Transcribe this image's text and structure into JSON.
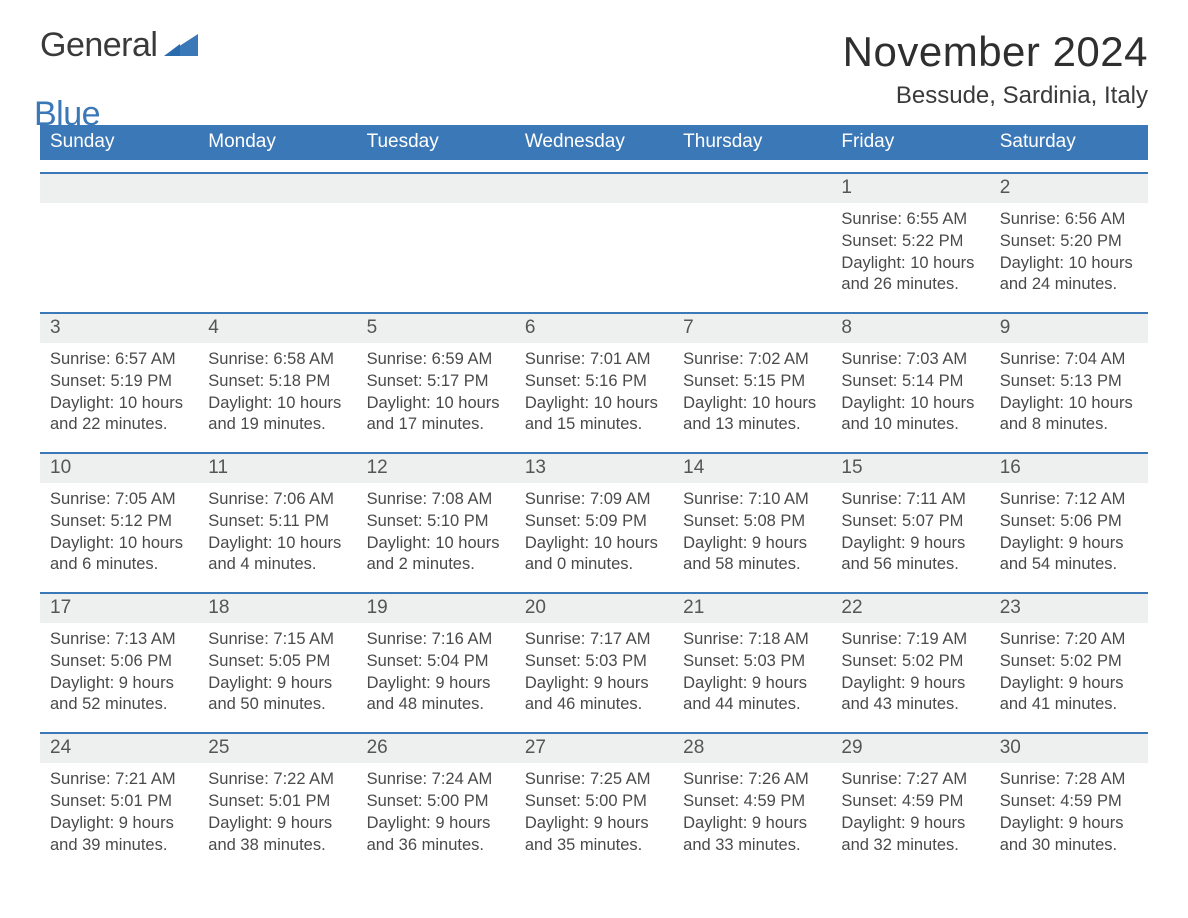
{
  "brand": {
    "word1": "General",
    "word2": "Blue"
  },
  "title": "November 2024",
  "subtitle": "Bessude, Sardinia, Italy",
  "colors": {
    "accent": "#3b78b8",
    "text": "#333333",
    "row_bg": "#eef0ef",
    "page_bg": "#ffffff"
  },
  "weekdays": [
    "Sunday",
    "Monday",
    "Tuesday",
    "Wednesday",
    "Thursday",
    "Friday",
    "Saturday"
  ],
  "weeks": [
    [
      null,
      null,
      null,
      null,
      null,
      {
        "n": "1",
        "sunrise": "6:55 AM",
        "sunset": "5:22 PM",
        "dl1": "Daylight: 10 hours",
        "dl2": "and 26 minutes."
      },
      {
        "n": "2",
        "sunrise": "6:56 AM",
        "sunset": "5:20 PM",
        "dl1": "Daylight: 10 hours",
        "dl2": "and 24 minutes."
      }
    ],
    [
      {
        "n": "3",
        "sunrise": "6:57 AM",
        "sunset": "5:19 PM",
        "dl1": "Daylight: 10 hours",
        "dl2": "and 22 minutes."
      },
      {
        "n": "4",
        "sunrise": "6:58 AM",
        "sunset": "5:18 PM",
        "dl1": "Daylight: 10 hours",
        "dl2": "and 19 minutes."
      },
      {
        "n": "5",
        "sunrise": "6:59 AM",
        "sunset": "5:17 PM",
        "dl1": "Daylight: 10 hours",
        "dl2": "and 17 minutes."
      },
      {
        "n": "6",
        "sunrise": "7:01 AM",
        "sunset": "5:16 PM",
        "dl1": "Daylight: 10 hours",
        "dl2": "and 15 minutes."
      },
      {
        "n": "7",
        "sunrise": "7:02 AM",
        "sunset": "5:15 PM",
        "dl1": "Daylight: 10 hours",
        "dl2": "and 13 minutes."
      },
      {
        "n": "8",
        "sunrise": "7:03 AM",
        "sunset": "5:14 PM",
        "dl1": "Daylight: 10 hours",
        "dl2": "and 10 minutes."
      },
      {
        "n": "9",
        "sunrise": "7:04 AM",
        "sunset": "5:13 PM",
        "dl1": "Daylight: 10 hours",
        "dl2": "and 8 minutes."
      }
    ],
    [
      {
        "n": "10",
        "sunrise": "7:05 AM",
        "sunset": "5:12 PM",
        "dl1": "Daylight: 10 hours",
        "dl2": "and 6 minutes."
      },
      {
        "n": "11",
        "sunrise": "7:06 AM",
        "sunset": "5:11 PM",
        "dl1": "Daylight: 10 hours",
        "dl2": "and 4 minutes."
      },
      {
        "n": "12",
        "sunrise": "7:08 AM",
        "sunset": "5:10 PM",
        "dl1": "Daylight: 10 hours",
        "dl2": "and 2 minutes."
      },
      {
        "n": "13",
        "sunrise": "7:09 AM",
        "sunset": "5:09 PM",
        "dl1": "Daylight: 10 hours",
        "dl2": "and 0 minutes."
      },
      {
        "n": "14",
        "sunrise": "7:10 AM",
        "sunset": "5:08 PM",
        "dl1": "Daylight: 9 hours",
        "dl2": "and 58 minutes."
      },
      {
        "n": "15",
        "sunrise": "7:11 AM",
        "sunset": "5:07 PM",
        "dl1": "Daylight: 9 hours",
        "dl2": "and 56 minutes."
      },
      {
        "n": "16",
        "sunrise": "7:12 AM",
        "sunset": "5:06 PM",
        "dl1": "Daylight: 9 hours",
        "dl2": "and 54 minutes."
      }
    ],
    [
      {
        "n": "17",
        "sunrise": "7:13 AM",
        "sunset": "5:06 PM",
        "dl1": "Daylight: 9 hours",
        "dl2": "and 52 minutes."
      },
      {
        "n": "18",
        "sunrise": "7:15 AM",
        "sunset": "5:05 PM",
        "dl1": "Daylight: 9 hours",
        "dl2": "and 50 minutes."
      },
      {
        "n": "19",
        "sunrise": "7:16 AM",
        "sunset": "5:04 PM",
        "dl1": "Daylight: 9 hours",
        "dl2": "and 48 minutes."
      },
      {
        "n": "20",
        "sunrise": "7:17 AM",
        "sunset": "5:03 PM",
        "dl1": "Daylight: 9 hours",
        "dl2": "and 46 minutes."
      },
      {
        "n": "21",
        "sunrise": "7:18 AM",
        "sunset": "5:03 PM",
        "dl1": "Daylight: 9 hours",
        "dl2": "and 44 minutes."
      },
      {
        "n": "22",
        "sunrise": "7:19 AM",
        "sunset": "5:02 PM",
        "dl1": "Daylight: 9 hours",
        "dl2": "and 43 minutes."
      },
      {
        "n": "23",
        "sunrise": "7:20 AM",
        "sunset": "5:02 PM",
        "dl1": "Daylight: 9 hours",
        "dl2": "and 41 minutes."
      }
    ],
    [
      {
        "n": "24",
        "sunrise": "7:21 AM",
        "sunset": "5:01 PM",
        "dl1": "Daylight: 9 hours",
        "dl2": "and 39 minutes."
      },
      {
        "n": "25",
        "sunrise": "7:22 AM",
        "sunset": "5:01 PM",
        "dl1": "Daylight: 9 hours",
        "dl2": "and 38 minutes."
      },
      {
        "n": "26",
        "sunrise": "7:24 AM",
        "sunset": "5:00 PM",
        "dl1": "Daylight: 9 hours",
        "dl2": "and 36 minutes."
      },
      {
        "n": "27",
        "sunrise": "7:25 AM",
        "sunset": "5:00 PM",
        "dl1": "Daylight: 9 hours",
        "dl2": "and 35 minutes."
      },
      {
        "n": "28",
        "sunrise": "7:26 AM",
        "sunset": "4:59 PM",
        "dl1": "Daylight: 9 hours",
        "dl2": "and 33 minutes."
      },
      {
        "n": "29",
        "sunrise": "7:27 AM",
        "sunset": "4:59 PM",
        "dl1": "Daylight: 9 hours",
        "dl2": "and 32 minutes."
      },
      {
        "n": "30",
        "sunrise": "7:28 AM",
        "sunset": "4:59 PM",
        "dl1": "Daylight: 9 hours",
        "dl2": "and 30 minutes."
      }
    ]
  ],
  "labels": {
    "sunrise": "Sunrise: ",
    "sunset": "Sunset: "
  }
}
